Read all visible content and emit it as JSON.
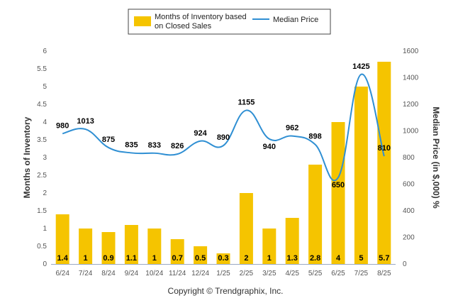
{
  "chart_data": {
    "type": "bar+line",
    "categories": [
      "6/24",
      "7/24",
      "8/24",
      "9/24",
      "10/24",
      "11/24",
      "12/24",
      "1/25",
      "2/25",
      "3/25",
      "4/25",
      "5/25",
      "6/25",
      "7/25",
      "8/25"
    ],
    "series": [
      {
        "name": "Months of Inventory based on Closed Sales",
        "type": "bar",
        "axis": "left",
        "color": "#f5c400",
        "values": [
          1.4,
          1,
          0.9,
          1.1,
          1,
          0.7,
          0.5,
          0.3,
          2,
          1,
          1.3,
          2.8,
          4,
          5,
          5.7
        ],
        "labels": [
          "1.4",
          "1",
          "0.9",
          "1.1",
          "1",
          "0.7",
          "0.5",
          "0.3",
          "2",
          "1",
          "1.3",
          "2.8",
          "4",
          "5",
          "5.7"
        ]
      },
      {
        "name": "Median Price",
        "type": "line",
        "axis": "right",
        "color": "#2f8fd3",
        "values": [
          980,
          1013,
          875,
          835,
          833,
          826,
          924,
          890,
          1155,
          940,
          962,
          898,
          650,
          1425,
          810
        ],
        "labels": [
          "980",
          "1013",
          "875",
          "835",
          "833",
          "826",
          "924",
          "890",
          "1155",
          "940",
          "962",
          "898",
          "650",
          "1425",
          "810"
        ]
      }
    ],
    "ylabel_left": "Months of Inventory",
    "ylabel_right": "Median Price (in $,000) %",
    "ylim_left": [
      0,
      6
    ],
    "yticks_left": [
      "0",
      "0.5",
      "1",
      "1.5",
      "2",
      "2.5",
      "3",
      "3.5",
      "4",
      "4.5",
      "5",
      "5.5",
      "6"
    ],
    "ylim_right": [
      0,
      1600
    ],
    "yticks_right": [
      "0",
      "200",
      "400",
      "600",
      "800",
      "1000",
      "1200",
      "1400",
      "1600"
    ],
    "legend_placement": "top-center",
    "grid": false
  },
  "footer": "Copyright © Trendgraphix, Inc."
}
